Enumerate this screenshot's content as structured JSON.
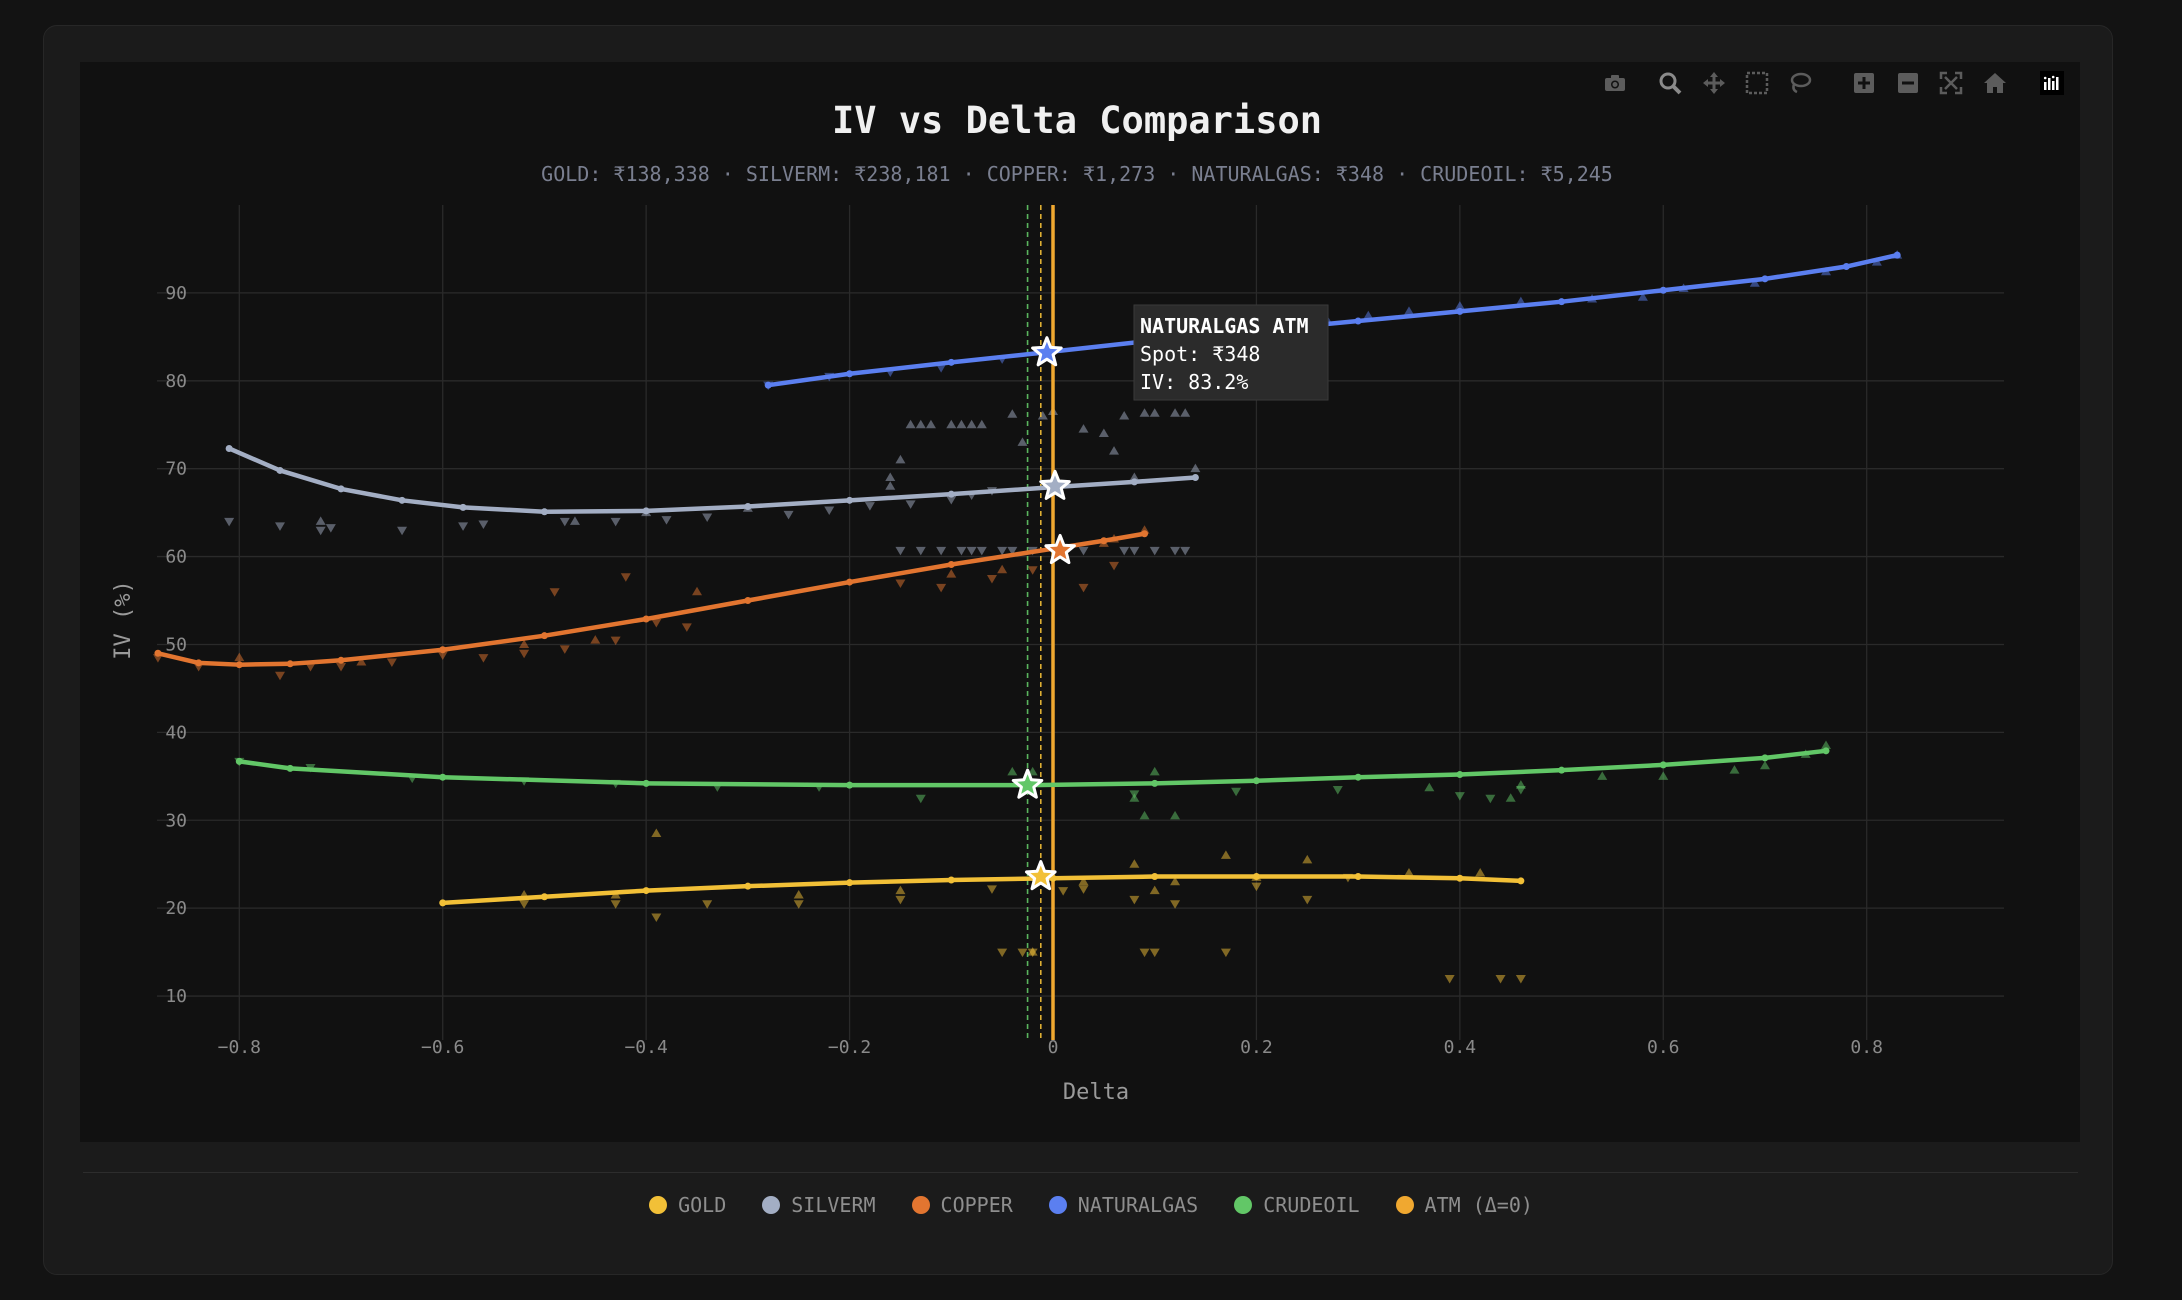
{
  "toolbar": {
    "icons": [
      "camera-icon",
      "zoom-icon",
      "pan-icon",
      "box-select-icon",
      "lasso-select-icon",
      "zoom-in-icon",
      "zoom-out-icon",
      "autoscale-icon",
      "reset-axes-icon",
      "plotly-logo-icon"
    ]
  },
  "chart_data": {
    "type": "line",
    "title": "IV vs Delta Comparison",
    "subtitle": "GOLD: ₹138,338 · SILVERM: ₹238,181 · COPPER: ₹1,273 · NATURALGAS: ₹348 · CRUDEOIL: ₹5,245",
    "xlabel": "Delta",
    "ylabel": "IV (%)",
    "xlim": [
      -0.935,
      0.935
    ],
    "ylim": [
      5,
      100
    ],
    "xticks": [
      -0.8,
      -0.6,
      -0.4,
      -0.2,
      0,
      0.2,
      0.4,
      0.6,
      0.8
    ],
    "xtick_labels": [
      "−0.8",
      "−0.6",
      "−0.4",
      "−0.2",
      "0",
      "0.2",
      "0.4",
      "0.6",
      "0.8"
    ],
    "yticks": [
      10,
      20,
      30,
      40,
      50,
      60,
      70,
      80,
      90
    ],
    "ytick_labels": [
      "10",
      "20",
      "30",
      "40",
      "50",
      "60",
      "70",
      "80",
      "90"
    ],
    "grid": true,
    "legend_placement": "bottom-center",
    "series": [
      {
        "name": "GOLD",
        "color": "#f2c037",
        "x": [
          -0.6,
          -0.5,
          -0.4,
          -0.3,
          -0.2,
          -0.1,
          0,
          0.1,
          0.2,
          0.3,
          0.4,
          0.46
        ],
        "y": [
          20.6,
          21.3,
          22.0,
          22.5,
          22.9,
          23.2,
          23.4,
          23.6,
          23.6,
          23.6,
          23.4,
          23.1
        ],
        "atm": {
          "x": -0.012,
          "y": 23.6
        }
      },
      {
        "name": "SILVERM",
        "color": "#a3aec4",
        "x": [
          -0.81,
          -0.76,
          -0.7,
          -0.64,
          -0.58,
          -0.5,
          -0.4,
          -0.3,
          -0.2,
          -0.1,
          0,
          0.08,
          0.14
        ],
        "y": [
          72.3,
          69.8,
          67.7,
          66.4,
          65.6,
          65.1,
          65.2,
          65.7,
          66.4,
          67.1,
          67.9,
          68.5,
          69.0
        ],
        "atm": {
          "x": 0.002,
          "y": 68.0
        }
      },
      {
        "name": "COPPER",
        "color": "#e27530",
        "x": [
          -0.88,
          -0.84,
          -0.8,
          -0.75,
          -0.7,
          -0.6,
          -0.5,
          -0.4,
          -0.3,
          -0.2,
          -0.1,
          0,
          0.05,
          0.09
        ],
        "y": [
          49.0,
          47.9,
          47.7,
          47.8,
          48.2,
          49.4,
          51.0,
          52.9,
          55.0,
          57.1,
          59.1,
          60.9,
          61.8,
          62.6
        ],
        "atm": {
          "x": 0.007,
          "y": 60.7
        }
      },
      {
        "name": "NATURALGAS",
        "color": "#5b7ff0",
        "x": [
          -0.28,
          -0.2,
          -0.1,
          -0.01,
          0.1,
          0.2,
          0.3,
          0.4,
          0.5,
          0.6,
          0.7,
          0.78,
          0.83
        ],
        "y": [
          79.5,
          80.8,
          82.1,
          83.2,
          84.6,
          85.7,
          86.8,
          87.9,
          89.0,
          90.3,
          91.6,
          93.0,
          94.3
        ],
        "atm": {
          "x": -0.006,
          "y": 83.2
        }
      },
      {
        "name": "CRUDEOIL",
        "color": "#62c767",
        "x": [
          -0.8,
          -0.75,
          -0.6,
          -0.4,
          -0.2,
          -0.02,
          0.1,
          0.2,
          0.3,
          0.4,
          0.5,
          0.6,
          0.7,
          0.76
        ],
        "y": [
          36.7,
          35.9,
          34.9,
          34.2,
          34.0,
          34.0,
          34.2,
          34.5,
          34.9,
          35.2,
          35.7,
          36.3,
          37.1,
          37.9
        ],
        "atm": {
          "x": -0.025,
          "y": 34.0
        }
      }
    ],
    "markers": [
      {
        "series": "GOLD",
        "type": "put",
        "points": [
          [
            -0.52,
            20.5
          ],
          [
            -0.43,
            20.5
          ],
          [
            -0.39,
            19.0
          ],
          [
            -0.34,
            20.5
          ],
          [
            -0.25,
            20.5
          ],
          [
            -0.15,
            21.0
          ],
          [
            -0.06,
            22.2
          ],
          [
            -0.05,
            15.0
          ],
          [
            -0.03,
            15.0
          ],
          [
            -0.02,
            15.0
          ],
          [
            0.01,
            22.0
          ],
          [
            0.03,
            22.2
          ],
          [
            0.08,
            21.0
          ],
          [
            0.09,
            15.0
          ],
          [
            0.1,
            15.0
          ],
          [
            0.12,
            20.5
          ],
          [
            0.17,
            15.0
          ],
          [
            0.2,
            22.5
          ],
          [
            0.25,
            21.0
          ],
          [
            0.29,
            23.5
          ],
          [
            0.39,
            12.0
          ],
          [
            0.44,
            12.0
          ],
          [
            0.46,
            12.0
          ]
        ]
      },
      {
        "series": "GOLD",
        "type": "call",
        "points": [
          [
            -0.52,
            21.5
          ],
          [
            -0.43,
            21.5
          ],
          [
            -0.39,
            28.5
          ],
          [
            -0.25,
            21.5
          ],
          [
            -0.15,
            22.0
          ],
          [
            -0.02,
            15.0
          ],
          [
            0.03,
            23.0
          ],
          [
            0.08,
            25.0
          ],
          [
            0.1,
            22.0
          ],
          [
            0.12,
            23.0
          ],
          [
            0.17,
            26.0
          ],
          [
            0.2,
            23.5
          ],
          [
            0.25,
            25.5
          ],
          [
            0.35,
            24.0
          ],
          [
            0.42,
            24.0
          ]
        ]
      },
      {
        "series": "SILVERM",
        "type": "put",
        "points": [
          [
            -0.81,
            64
          ],
          [
            -0.76,
            63.5
          ],
          [
            -0.72,
            63
          ],
          [
            -0.71,
            63.3
          ],
          [
            -0.64,
            63
          ],
          [
            -0.58,
            63.5
          ],
          [
            -0.56,
            63.7
          ],
          [
            -0.48,
            64
          ],
          [
            -0.43,
            64
          ],
          [
            -0.38,
            64.2
          ],
          [
            -0.34,
            64.5
          ],
          [
            -0.26,
            64.8
          ],
          [
            -0.22,
            65.3
          ],
          [
            -0.18,
            65.8
          ],
          [
            -0.14,
            66
          ],
          [
            -0.1,
            66.5
          ],
          [
            -0.08,
            67
          ],
          [
            -0.06,
            67.5
          ],
          [
            0.03,
            60.7
          ],
          [
            0.07,
            60.7
          ],
          [
            0.08,
            60.7
          ],
          [
            0.1,
            60.7
          ],
          [
            0.12,
            60.7
          ],
          [
            0.13,
            60.7
          ],
          [
            -0.15,
            60.7
          ],
          [
            -0.13,
            60.7
          ],
          [
            -0.11,
            60.7
          ],
          [
            -0.09,
            60.7
          ],
          [
            -0.08,
            60.7
          ],
          [
            -0.07,
            60.7
          ],
          [
            -0.05,
            60.7
          ],
          [
            -0.04,
            60.7
          ],
          [
            -0.02,
            60.7
          ]
        ]
      },
      {
        "series": "SILVERM",
        "type": "call",
        "points": [
          [
            -0.72,
            64
          ],
          [
            -0.47,
            64
          ],
          [
            -0.4,
            65
          ],
          [
            -0.3,
            65.5
          ],
          [
            -0.16,
            68
          ],
          [
            -0.16,
            69
          ],
          [
            -0.15,
            71
          ],
          [
            -0.14,
            75
          ],
          [
            -0.13,
            75
          ],
          [
            -0.12,
            75
          ],
          [
            -0.1,
            75
          ],
          [
            -0.09,
            75
          ],
          [
            -0.08,
            75
          ],
          [
            -0.07,
            75
          ],
          [
            -0.04,
            76.2
          ],
          [
            -0.03,
            73
          ],
          [
            -0.01,
            76
          ],
          [
            0.0,
            76.5
          ],
          [
            0.03,
            74.5
          ],
          [
            0.05,
            74
          ],
          [
            0.06,
            72
          ],
          [
            0.07,
            76
          ],
          [
            0.08,
            69
          ],
          [
            0.09,
            76.3
          ],
          [
            0.1,
            76.3
          ],
          [
            0.12,
            76.3
          ],
          [
            0.13,
            76.3
          ],
          [
            0.14,
            70
          ]
        ]
      },
      {
        "series": "COPPER",
        "type": "put",
        "points": [
          [
            -0.88,
            48.5
          ],
          [
            -0.84,
            47.5
          ],
          [
            -0.76,
            46.5
          ],
          [
            -0.73,
            47.5
          ],
          [
            -0.7,
            47.5
          ],
          [
            -0.65,
            48
          ],
          [
            -0.6,
            48.8
          ],
          [
            -0.56,
            48.5
          ],
          [
            -0.52,
            49
          ],
          [
            -0.48,
            49.5
          ],
          [
            -0.43,
            50.5
          ],
          [
            -0.39,
            52.5
          ],
          [
            -0.36,
            52
          ],
          [
            -0.42,
            57.7
          ],
          [
            -0.49,
            56
          ],
          [
            -0.15,
            57
          ],
          [
            -0.11,
            56.5
          ],
          [
            -0.06,
            57.5
          ],
          [
            -0.02,
            58.5
          ],
          [
            0.03,
            56.5
          ],
          [
            0.06,
            59
          ]
        ]
      },
      {
        "series": "COPPER",
        "type": "call",
        "points": [
          [
            -0.8,
            48.5
          ],
          [
            -0.68,
            48
          ],
          [
            -0.52,
            50
          ],
          [
            -0.45,
            50.5
          ],
          [
            -0.35,
            56
          ],
          [
            -0.1,
            58
          ],
          [
            -0.05,
            58.5
          ],
          [
            0.05,
            61.5
          ],
          [
            0.06,
            62
          ],
          [
            0.09,
            63
          ]
        ]
      },
      {
        "series": "NATURALGAS",
        "type": "put",
        "points": [
          [
            -0.28,
            79.5
          ],
          [
            -0.22,
            80.5
          ],
          [
            -0.16,
            81
          ],
          [
            -0.11,
            81.5
          ],
          [
            -0.05,
            82.5
          ]
        ]
      },
      {
        "series": "NATURALGAS",
        "type": "call",
        "points": [
          [
            0.14,
            84.8
          ],
          [
            0.2,
            85.7
          ],
          [
            0.27,
            86.8
          ],
          [
            0.31,
            87.4
          ],
          [
            0.35,
            87.9
          ],
          [
            0.4,
            88.5
          ],
          [
            0.46,
            89
          ],
          [
            0.53,
            89.3
          ],
          [
            0.58,
            89.5
          ],
          [
            0.62,
            90.5
          ],
          [
            0.69,
            91.1
          ],
          [
            0.76,
            92.4
          ],
          [
            0.81,
            93.5
          ],
          [
            0.83,
            94.3
          ]
        ]
      },
      {
        "series": "CRUDEOIL",
        "type": "put",
        "points": [
          [
            -0.8,
            36.7
          ],
          [
            -0.73,
            36
          ],
          [
            -0.63,
            34.8
          ],
          [
            -0.52,
            34.5
          ],
          [
            -0.43,
            34.2
          ],
          [
            -0.33,
            33.8
          ],
          [
            -0.23,
            33.8
          ],
          [
            -0.13,
            32.5
          ],
          [
            -0.03,
            33.8
          ],
          [
            0.08,
            33
          ],
          [
            0.18,
            33.3
          ],
          [
            0.28,
            33.5
          ],
          [
            0.4,
            32.8
          ],
          [
            0.43,
            32.5
          ],
          [
            0.46,
            33.5
          ]
        ]
      },
      {
        "series": "CRUDEOIL",
        "type": "call",
        "points": [
          [
            -0.04,
            35.5
          ],
          [
            -0.02,
            35.5
          ],
          [
            0.08,
            32.5
          ],
          [
            0.1,
            35.5
          ],
          [
            0.09,
            30.5
          ],
          [
            0.12,
            30.5
          ],
          [
            0.37,
            33.7
          ],
          [
            0.45,
            32.5
          ],
          [
            0.46,
            34
          ],
          [
            0.54,
            35
          ],
          [
            0.6,
            35
          ],
          [
            0.67,
            35.7
          ],
          [
            0.7,
            36.2
          ],
          [
            0.74,
            37.5
          ],
          [
            0.76,
            38.5
          ]
        ]
      }
    ],
    "atm_line": {
      "name": "ATM (Δ=0)",
      "x": 0,
      "color": "#f0a830"
    },
    "atm_ref_lines": [
      {
        "x": -0.025,
        "color": "#62c767"
      },
      {
        "x": -0.012,
        "color": "#f2c037"
      }
    ],
    "tooltip": {
      "title": "NATURALGAS ATM",
      "line1": "Spot: ₹348",
      "line2": "IV: 83.2%"
    }
  },
  "legend": [
    {
      "label": "GOLD",
      "color": "#f2c037"
    },
    {
      "label": "SILVERM",
      "color": "#a3aec4"
    },
    {
      "label": "COPPER",
      "color": "#e27530"
    },
    {
      "label": "NATURALGAS",
      "color": "#5b7ff0"
    },
    {
      "label": "CRUDEOIL",
      "color": "#62c767"
    },
    {
      "label": "ATM (Δ=0)",
      "color": "#f0a830"
    }
  ]
}
